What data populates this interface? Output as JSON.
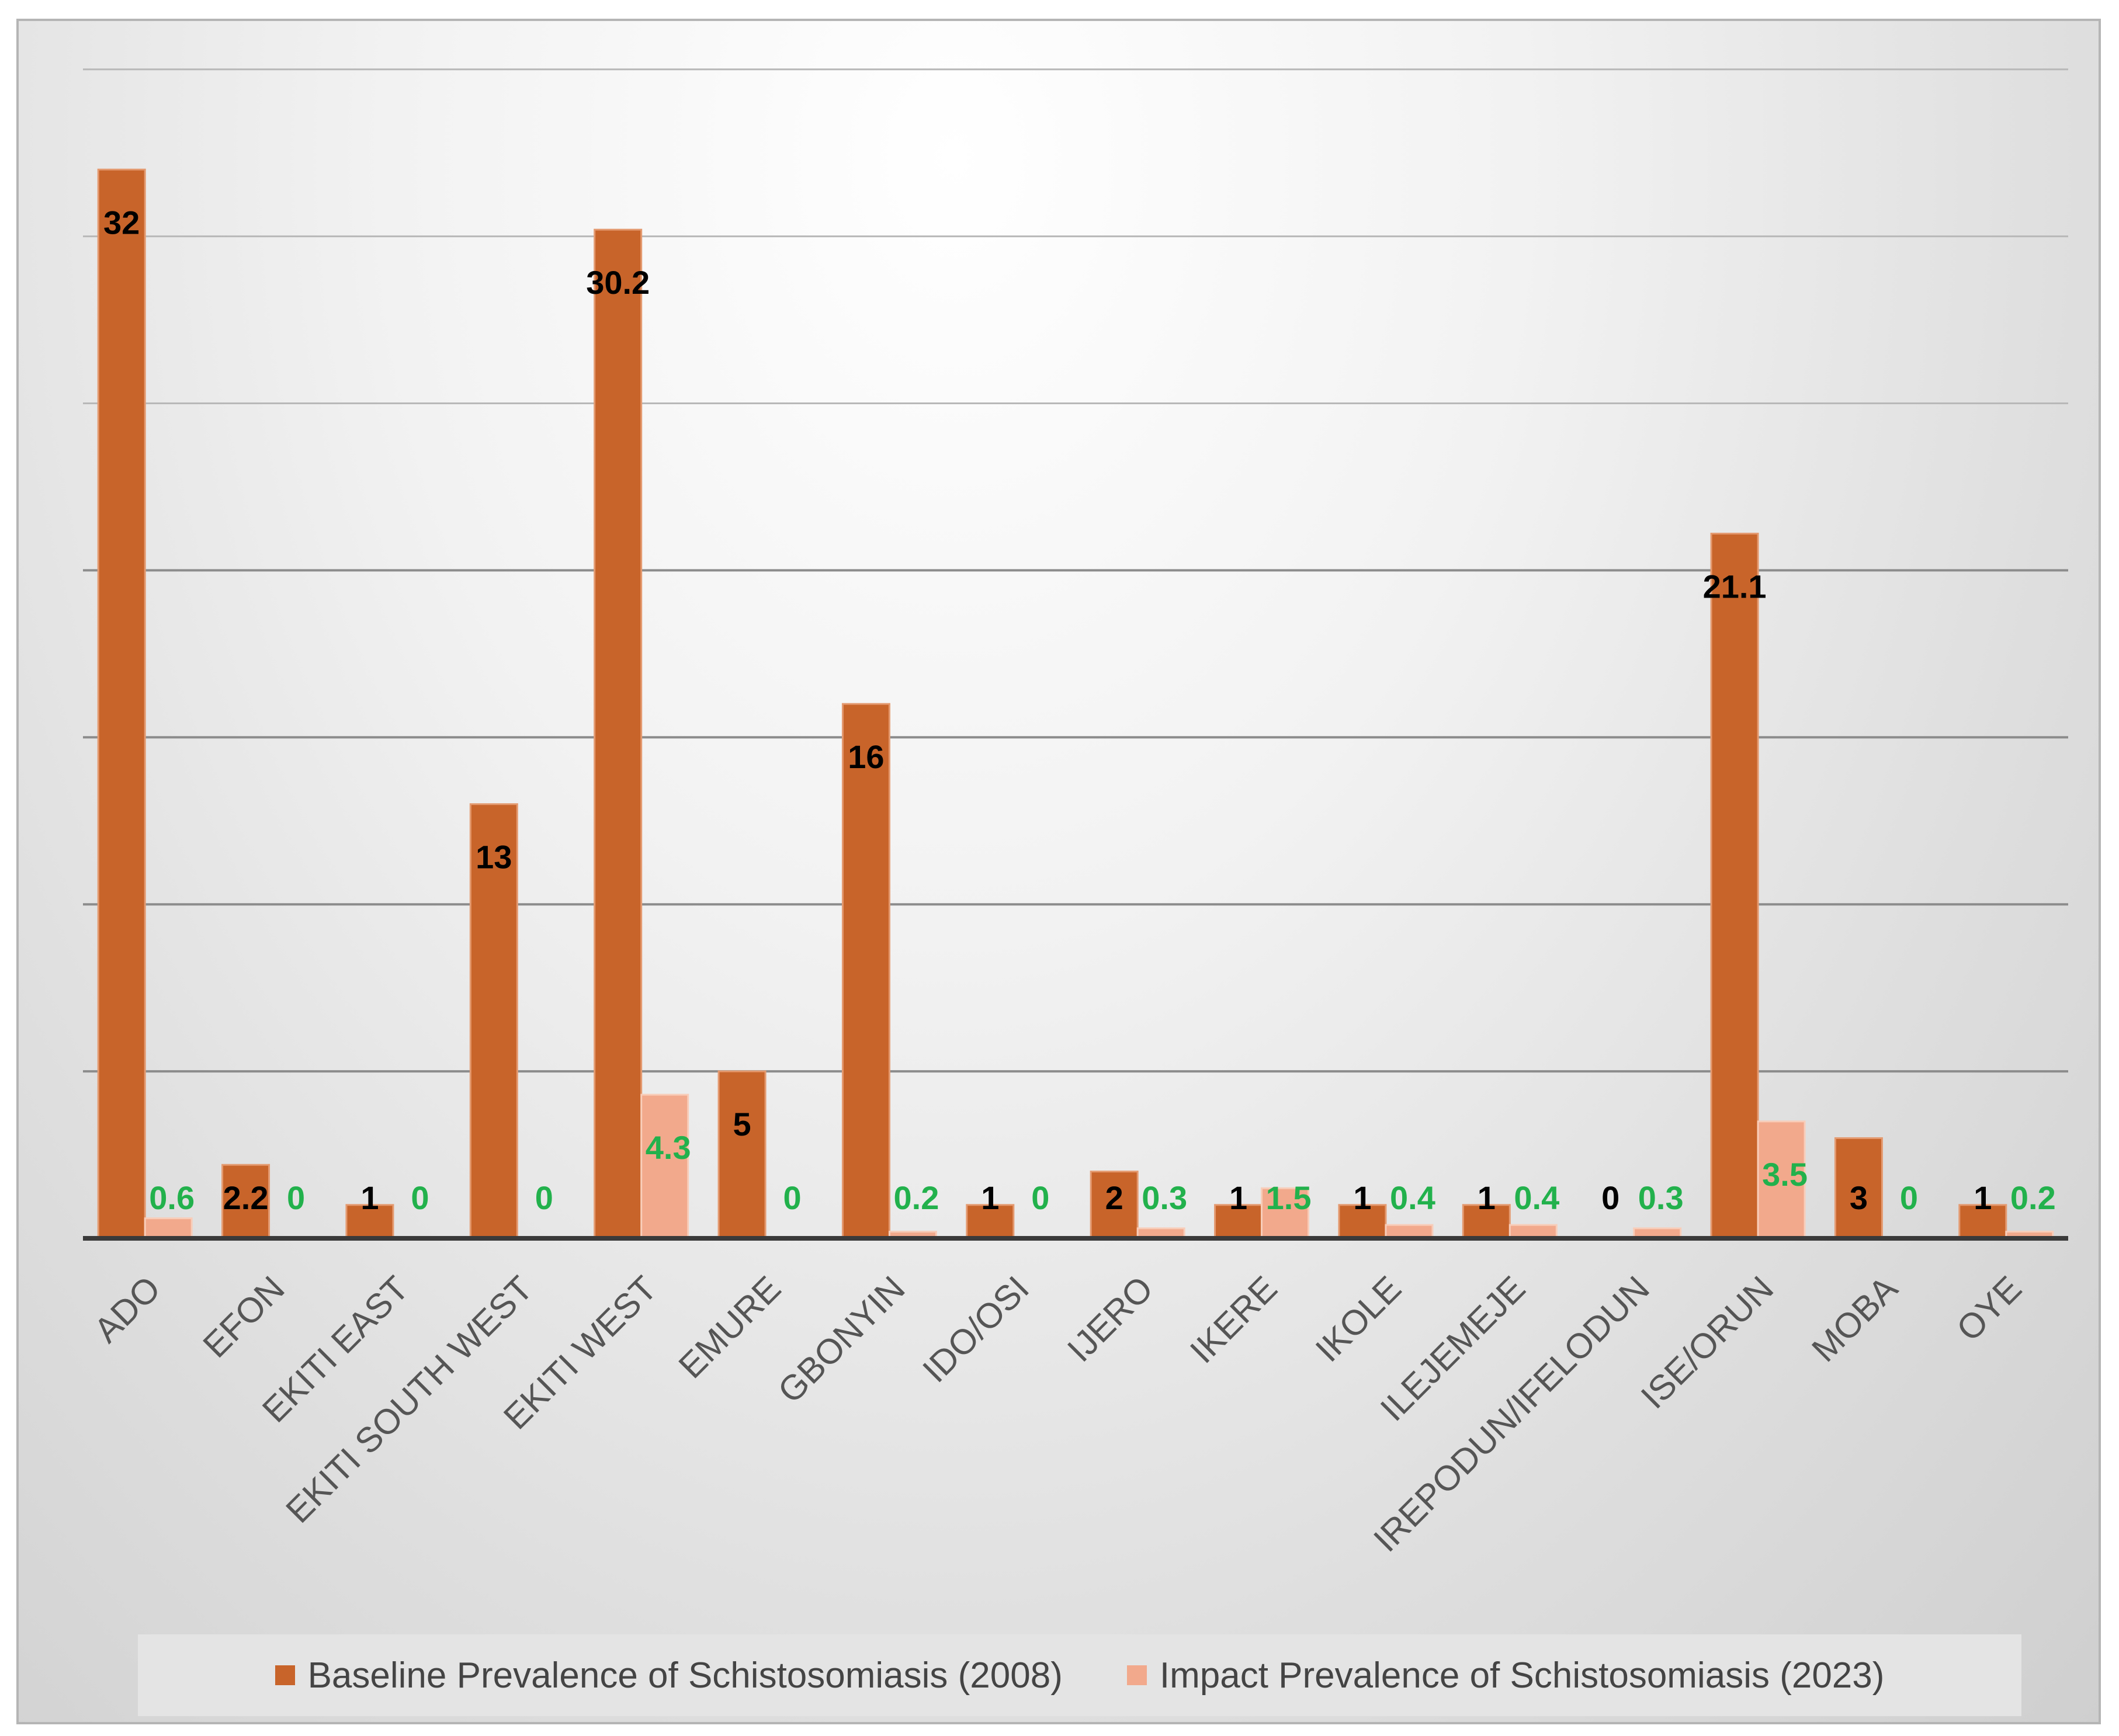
{
  "chart_data": {
    "type": "bar",
    "title": "",
    "xlabel": "",
    "ylabel": "",
    "ylim": [
      0,
      35
    ],
    "grid": true,
    "legend_position": "bottom",
    "categories": [
      "ADO",
      "EFON",
      "EKITI EAST",
      "EKITI SOUTH WEST",
      "EKITI WEST",
      "EMURE",
      "GBONYIN",
      "IDO/OSI",
      "IJERO",
      "IKERE",
      "IKOLE",
      "ILEJEMEJE",
      "IREPODUN/IFELODUN",
      "ISE/ORUN",
      "MOBA",
      "OYE"
    ],
    "series": [
      {
        "name": "Baseline Prevalence of Schistosomiasis (2008)",
        "color": "#c8642a",
        "label_color": "#000000",
        "values": [
          32,
          2.2,
          1,
          13,
          30.2,
          5,
          16,
          1,
          2,
          1,
          1,
          1,
          0,
          21.1,
          3,
          1
        ],
        "labels": [
          "32",
          "2.2",
          "1",
          "13",
          "30.2",
          "5",
          "16",
          "1",
          "2",
          "1",
          "1",
          "1",
          "0",
          "21.1",
          "3",
          "1"
        ]
      },
      {
        "name": "Impact Prevalence of Schistosomiasis (2023)",
        "color": "#f2a98c",
        "label_color": "#22b14c",
        "values": [
          0.6,
          0,
          0,
          0,
          4.3,
          0,
          0.2,
          0,
          0.3,
          1.5,
          0.4,
          0.4,
          0.3,
          3.5,
          0,
          0.2
        ],
        "labels": [
          "0.6",
          "0",
          "0",
          "0",
          "4.3",
          "0",
          "0.2",
          "0",
          "0.3",
          "1.5",
          "0.4",
          "0.4",
          "0.3",
          "3.5",
          "0",
          "0.2"
        ]
      }
    ]
  },
  "legend": {
    "items": [
      {
        "label": "Baseline Prevalence of Schistosomiasis (2008)",
        "color": "#c8642a"
      },
      {
        "label": "Impact Prevalence of Schistosomiasis (2023)",
        "color": "#f2a98c"
      }
    ]
  }
}
